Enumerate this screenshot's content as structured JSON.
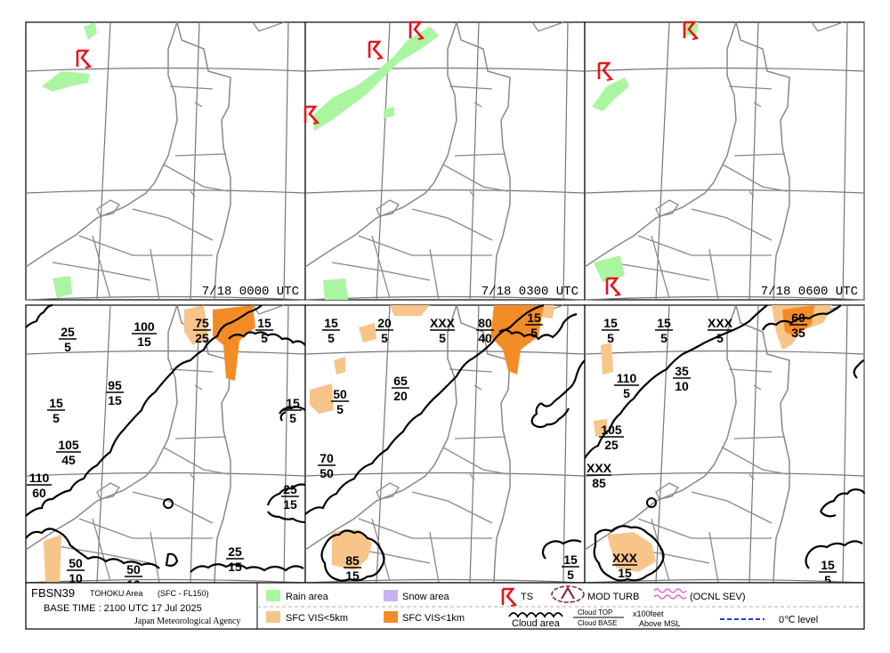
{
  "chart_id": "FBSN39",
  "area": "TOHOKU Area",
  "levels": "(SFC - FL150)",
  "base_time_label": "BASE TIME : 2100 UTC 17 Jul 2025",
  "agency": "Japan Meteorological Agency",
  "panels_top": [
    {
      "time": "7/18  0000  UTC",
      "ts": [
        "ts-a",
        "ts-b"
      ]
    },
    {
      "time": "7/18  0300  UTC"
    },
    {
      "time": "7/18  0600  UTC"
    }
  ],
  "cloud_labels": {
    "p1": [
      {
        "top": "25",
        "base": "5"
      },
      {
        "top": "100",
        "base": "15"
      },
      {
        "top": "75",
        "base": "25"
      },
      {
        "top": "15",
        "base": "5"
      },
      {
        "top": "95",
        "base": "15"
      },
      {
        "top": "15",
        "base": "5"
      },
      {
        "top": "105",
        "base": "45"
      },
      {
        "top": "110",
        "base": "60"
      },
      {
        "top": "15",
        "base": "5"
      },
      {
        "top": "25",
        "base": "15"
      },
      {
        "top": "50",
        "base": "10"
      },
      {
        "top": "50",
        "base": "10"
      },
      {
        "top": "25",
        "base": "15"
      }
    ],
    "p2": [
      {
        "top": "15",
        "base": "5"
      },
      {
        "top": "20",
        "base": "5"
      },
      {
        "top": "XXX",
        "base": "5"
      },
      {
        "top": "80",
        "base": "40"
      },
      {
        "top": "15",
        "base": "5"
      },
      {
        "top": "65",
        "base": "20"
      },
      {
        "top": "50",
        "base": "5"
      },
      {
        "top": "70",
        "base": "50"
      },
      {
        "top": "85",
        "base": "15"
      },
      {
        "top": "15",
        "base": "5"
      }
    ],
    "p3": [
      {
        "top": "15",
        "base": "5"
      },
      {
        "top": "15",
        "base": "5"
      },
      {
        "top": "XXX",
        "base": "5"
      },
      {
        "top": "60",
        "base": "35"
      },
      {
        "top": "110",
        "base": "5"
      },
      {
        "top": "35",
        "base": "10"
      },
      {
        "top": "105",
        "base": "25"
      },
      {
        "top": "XXX",
        "base": "85"
      },
      {
        "top": "XXX",
        "base": "15"
      },
      {
        "top": "15",
        "base": "5"
      }
    ]
  },
  "legend": {
    "rain": "Rain area",
    "snow": "Snow area",
    "ts": "TS",
    "turb": "MOD TURB",
    "sev": "(OCNL SEV)",
    "vis5": "SFC VIS<5km",
    "vis1": "SFC VIS<1km",
    "cloud_area": "Cloud area",
    "cloud_top": "Cloud TOP",
    "cloud_base": "Cloud BASE",
    "units": "x100feet",
    "msl": "Above MSL",
    "zero": "0℃ level"
  },
  "colors": {
    "rain": "#aaf5a0",
    "snow": "#c6b4f2",
    "vis5": "#f7c48a",
    "vis1": "#f48c26",
    "ts": "#e8121b",
    "turb": "#8b1b2e",
    "sev": "#e64dd3",
    "zero": "#1a3fe0"
  }
}
